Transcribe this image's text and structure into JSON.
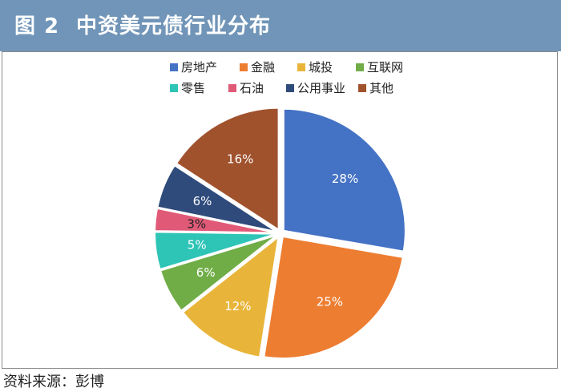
{
  "header": {
    "figure_label": "图 2",
    "title": "中资美元债行业分布"
  },
  "source": "资料来源：彭博",
  "chart_data": {
    "type": "pie",
    "title": "中资美元债行业分布",
    "start_angle_deg": 0,
    "direction": "clockwise",
    "legend_position": "top",
    "slices": [
      {
        "label": "房地产",
        "value": 28,
        "display": "28%",
        "color": "#4472c4",
        "label_color": "#ffffff"
      },
      {
        "label": "金融",
        "value": 25,
        "display": "25%",
        "color": "#ed7d31",
        "label_color": "#ffffff"
      },
      {
        "label": "城投",
        "value": 12,
        "display": "12%",
        "color": "#e8b53a",
        "label_color": "#ffffff"
      },
      {
        "label": "互联网",
        "value": 6,
        "display": "6%",
        "color": "#70ad47",
        "label_color": "#ffffff"
      },
      {
        "label": "零售",
        "value": 5,
        "display": "5%",
        "color": "#2ec4b6",
        "label_color": "#ffffff"
      },
      {
        "label": "石油",
        "value": 3,
        "display": "3%",
        "color": "#e05a78",
        "label_color": "#222222"
      },
      {
        "label": "公用事业",
        "value": 6,
        "display": "6%",
        "color": "#2f4b7c",
        "label_color": "#ffffff"
      },
      {
        "label": "其他",
        "value": 16,
        "display": "16%",
        "color": "#a0522d",
        "label_color": "#ffffff"
      }
    ]
  }
}
